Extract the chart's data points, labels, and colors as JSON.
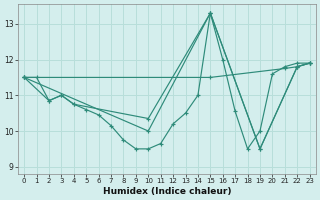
{
  "xlabel": "Humidex (Indice chaleur)",
  "bg_color": "#d4eeed",
  "line_color": "#2e8b7a",
  "grid_color": "#b8deda",
  "xlim": [
    -0.5,
    23.5
  ],
  "ylim": [
    8.8,
    13.55
  ],
  "yticks": [
    9,
    10,
    11,
    12,
    13
  ],
  "xticks": [
    0,
    1,
    2,
    3,
    4,
    5,
    6,
    7,
    8,
    9,
    10,
    11,
    12,
    13,
    14,
    15,
    16,
    17,
    18,
    19,
    20,
    21,
    22,
    23
  ],
  "series": [
    {
      "x": [
        0,
        1,
        2,
        3,
        4,
        5,
        6,
        7,
        8,
        9,
        10,
        11,
        12,
        13,
        14,
        15,
        16,
        17,
        18,
        19,
        20,
        21,
        22,
        23
      ],
      "y": [
        11.5,
        11.5,
        10.85,
        11.0,
        10.75,
        10.6,
        10.45,
        10.15,
        9.75,
        9.5,
        9.5,
        9.65,
        10.2,
        10.5,
        11.0,
        13.3,
        12.0,
        10.55,
        9.5,
        10.0,
        11.6,
        11.8,
        11.9,
        11.9
      ]
    },
    {
      "x": [
        0,
        15,
        21,
        22,
        23
      ],
      "y": [
        11.5,
        11.5,
        11.75,
        11.8,
        11.9
      ]
    },
    {
      "x": [
        0,
        2,
        3,
        4,
        10,
        15,
        19,
        22,
        23
      ],
      "y": [
        11.5,
        10.85,
        11.0,
        10.75,
        10.35,
        13.3,
        9.5,
        11.8,
        11.9
      ]
    },
    {
      "x": [
        0,
        10,
        15,
        19,
        22,
        23
      ],
      "y": [
        11.5,
        10.0,
        13.3,
        9.5,
        11.8,
        11.9
      ]
    }
  ]
}
